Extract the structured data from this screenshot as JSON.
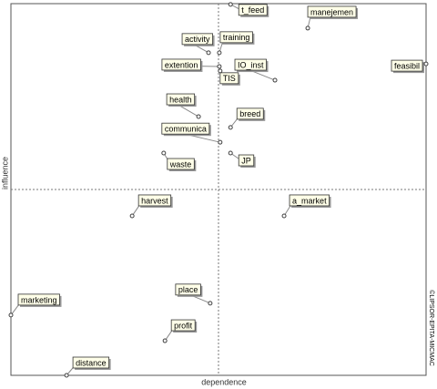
{
  "chart_data": {
    "type": "scatter",
    "x_label": "dependence",
    "y_label": "influence",
    "credit": "©LIPSOR-EPITA-MICMAC",
    "labels": [
      "t_feed",
      "manejemen",
      "feasibil",
      "activity",
      "training",
      "extention",
      "IO_inst",
      "TIS",
      "health",
      "breed",
      "communica",
      "JP",
      "waste",
      "harvest",
      "a_market",
      "marketing",
      "place",
      "profit",
      "distance"
    ],
    "x": [
      52.9,
      71.5,
      100,
      47.6,
      50.2,
      50.2,
      63.6,
      50.4,
      45.2,
      52.9,
      50.4,
      52.9,
      36.8,
      29.2,
      65.8,
      0,
      48.0,
      37.1,
      13.4
    ],
    "values": [
      99.8,
      93.4,
      83.8,
      86.8,
      86.8,
      83.1,
      79.4,
      81.9,
      69.6,
      66.7,
      62.7,
      59.8,
      59.8,
      42.9,
      42.9,
      16.2,
      19.4,
      9.3,
      0
    ],
    "xlim": [
      0,
      100
    ],
    "ylim": [
      0,
      100
    ],
    "color": "#404040"
  }
}
